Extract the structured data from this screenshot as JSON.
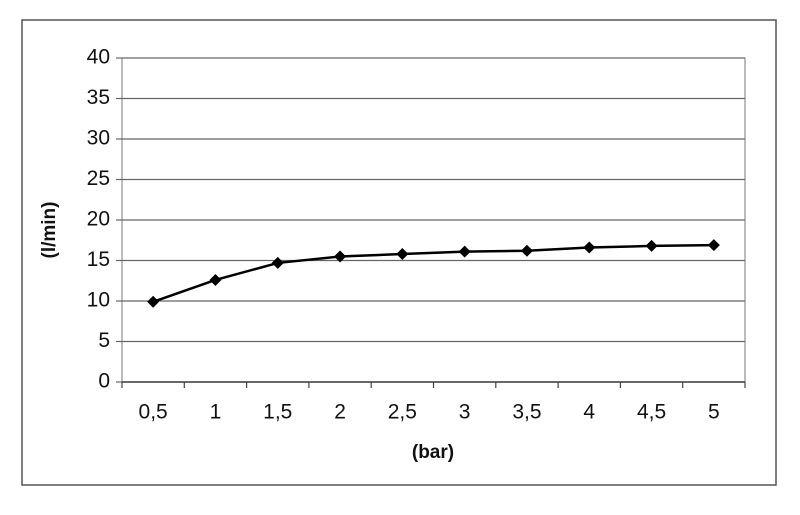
{
  "chart_data": {
    "type": "line",
    "categories": [
      "0,5",
      "1",
      "1,5",
      "2",
      "2,5",
      "3",
      "3,5",
      "4",
      "4,5",
      "5"
    ],
    "values": [
      9.9,
      12.6,
      14.7,
      15.5,
      15.8,
      16.1,
      16.2,
      16.6,
      16.8,
      16.9
    ],
    "color": "#000000",
    "ylim": [
      0,
      40
    ],
    "yticks": [
      0,
      5,
      10,
      15,
      20,
      25,
      30,
      35,
      40
    ],
    "grid": true,
    "ylabel": "(l/min)",
    "xlabel": "(bar)"
  }
}
